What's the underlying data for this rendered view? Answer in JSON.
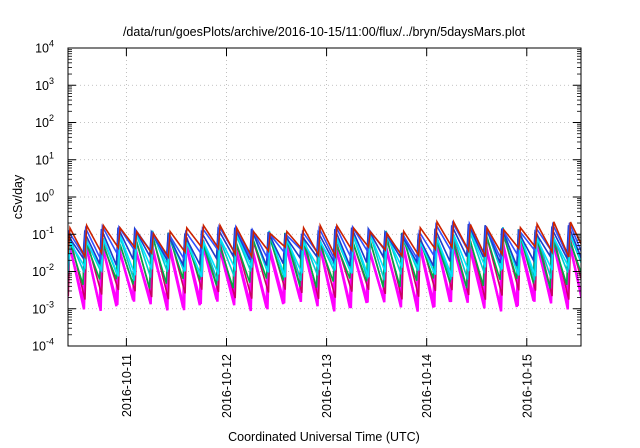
{
  "chart_data": {
    "type": "line",
    "title": "/data/run/goesPlots/archive/2016-10-15/11:00/flux/../bryn/5daysMars.plot",
    "xlabel": "Coordinated Universal Time (UTC)",
    "ylabel": "cSv/day",
    "yscale": "log",
    "ylim": [
      0.0001,
      10000
    ],
    "xlim": [
      "2016-10-10T10:00",
      "2016-10-15T13:00"
    ],
    "x_ticks": [
      {
        "x": "2016-10-11T00:00",
        "label": "2016-10-11"
      },
      {
        "x": "2016-10-12T00:00",
        "label": "2016-10-12"
      },
      {
        "x": "2016-10-13T00:00",
        "label": "2016-10-13"
      },
      {
        "x": "2016-10-14T00:00",
        "label": "2016-10-14"
      },
      {
        "x": "2016-10-15T00:00",
        "label": "2016-10-15"
      }
    ],
    "y_ticks": [
      {
        "value": 0.0001,
        "exp": "-4"
      },
      {
        "value": 0.001,
        "exp": "-3"
      },
      {
        "value": 0.01,
        "exp": "-2"
      },
      {
        "value": 0.1,
        "exp": "-1"
      },
      {
        "value": 1,
        "exp": "0"
      },
      {
        "value": 10,
        "exp": "1"
      },
      {
        "value": 100,
        "exp": "2"
      },
      {
        "value": 1000,
        "exp": "3"
      },
      {
        "value": 10000,
        "exp": "4"
      }
    ],
    "grid": true,
    "legend": "none",
    "series_note": "sawtooth daily-cycle series, ~6 sharp peaks per day",
    "series": [
      {
        "color": "#ff00ff",
        "peak": 0.06,
        "trough": 0.0015
      },
      {
        "color": "#ff00ff",
        "peak": 0.05,
        "trough": 0.0012
      },
      {
        "color": "#cc0066",
        "peak": 0.07,
        "trough": 0.0025
      },
      {
        "color": "#00aa44",
        "peak": 0.09,
        "trough": 0.005
      },
      {
        "color": "#00cccc",
        "peak": 0.1,
        "trough": 0.008
      },
      {
        "color": "#00e5ff",
        "peak": 0.08,
        "trough": 0.01
      },
      {
        "color": "#1e3cc8",
        "peak": 0.12,
        "trough": 0.02
      },
      {
        "color": "#3050ff",
        "peak": 0.13,
        "trough": 0.03
      },
      {
        "color": "#cc2200",
        "peak": 0.14,
        "trough": 0.035
      }
    ]
  }
}
